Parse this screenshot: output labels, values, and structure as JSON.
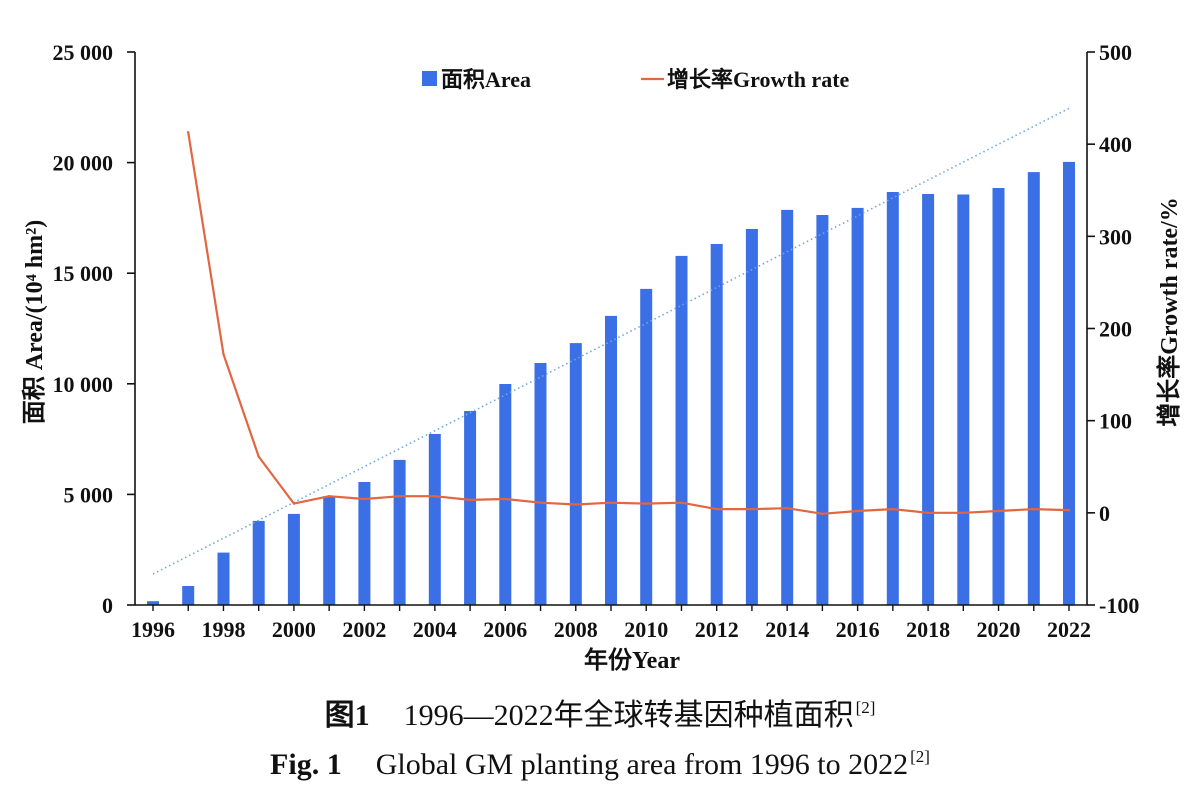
{
  "chart_data": {
    "type": "bar",
    "x": [
      1996,
      1997,
      1998,
      1999,
      2000,
      2001,
      2002,
      2003,
      2004,
      2005,
      2006,
      2007,
      2008,
      2009,
      2010,
      2011,
      2012,
      2013,
      2014,
      2015,
      2016,
      2017,
      2018,
      2019,
      2020,
      2021,
      2022
    ],
    "x_tick_labels": [
      "1996",
      "1998",
      "2000",
      "2002",
      "2004",
      "2006",
      "2008",
      "2010",
      "2012",
      "2014",
      "2016",
      "2018",
      "2020",
      "2022"
    ],
    "xlabel": "年份Year",
    "ylabel": "面积 Area/(10⁴ hm²)",
    "y2label": "增长率Growth rate/%",
    "ylim": [
      0,
      25000
    ],
    "y2lim": [
      -100,
      500
    ],
    "y_ticks": [
      0,
      5000,
      10000,
      15000,
      20000,
      25000
    ],
    "y_tick_labels": [
      "0",
      "5 000",
      "10 000",
      "15 000",
      "20 000",
      "25 000"
    ],
    "y2_ticks": [
      -100,
      0,
      100,
      200,
      300,
      400,
      500
    ],
    "y2_tick_labels": [
      "-100",
      "0",
      "100",
      "200",
      "300",
      "400",
      "500"
    ],
    "series": [
      {
        "name": "面积Area",
        "type": "bar",
        "axis": "left",
        "color": "#3b6fe6",
        "values": [
          170,
          860,
          2370,
          3800,
          4120,
          4920,
          5560,
          6560,
          7730,
          8770,
          9990,
          10940,
          11840,
          13070,
          14290,
          15780,
          16320,
          17000,
          17860,
          17630,
          17950,
          18670,
          18580,
          18560,
          18850,
          19570,
          20030
        ]
      },
      {
        "name": "增长率Growth rate",
        "type": "line",
        "axis": "right",
        "color": "#e2663f",
        "values": [
          null,
          413,
          172,
          61,
          10,
          18,
          15,
          18,
          18,
          14,
          15,
          11,
          9,
          11,
          10,
          11,
          4,
          4,
          5,
          -1,
          2,
          4,
          0,
          0,
          2,
          4,
          3
        ]
      }
    ],
    "trend_line": {
      "axis": "left",
      "style": "dotted",
      "color": "#6fa8dc",
      "x": [
        1996,
        2022
      ],
      "y": [
        1400,
        22450
      ]
    },
    "legend": {
      "position": "top-center"
    },
    "grid": false,
    "axis_color": "#111111"
  },
  "caption": {
    "zh": {
      "label": "图1",
      "text": "1996—2022年全球转基因种植面积",
      "ref": "[2]"
    },
    "en": {
      "label": "Fig. 1",
      "text": "Global GM planting area from 1996 to 2022",
      "ref": "[2]"
    }
  }
}
